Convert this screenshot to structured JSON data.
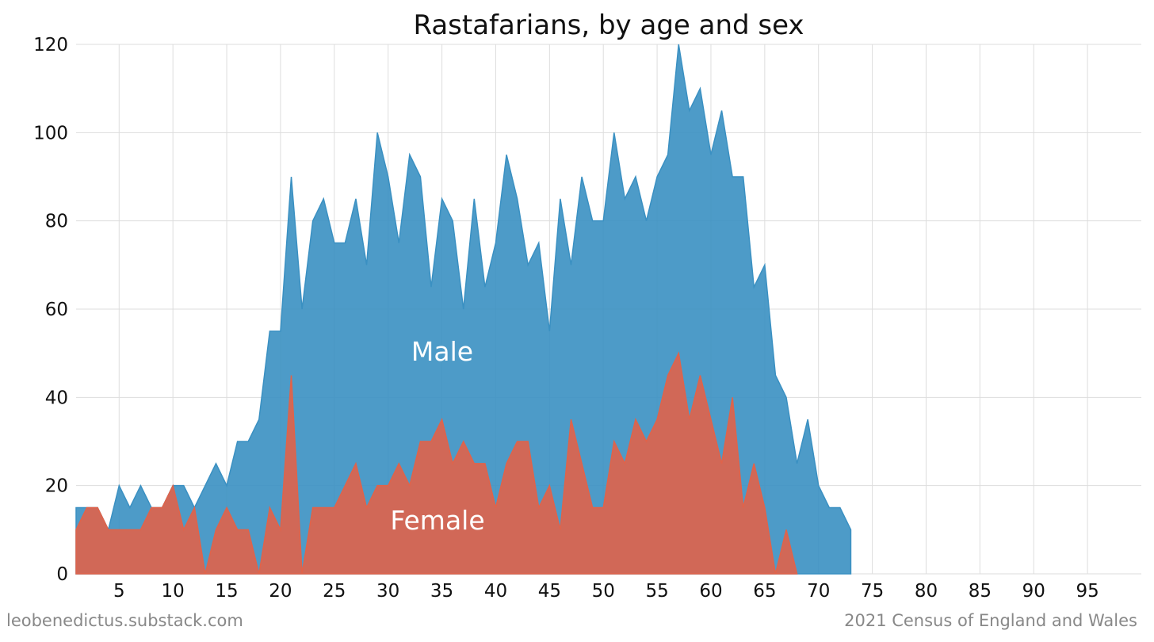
{
  "chart_data": {
    "type": "area",
    "title": "Rastafarians, by age and sex",
    "xlabel": "",
    "ylabel": "",
    "xlim": [
      1,
      100
    ],
    "ylim": [
      0,
      120
    ],
    "x_ticks": [
      5,
      10,
      15,
      20,
      25,
      30,
      35,
      40,
      45,
      50,
      55,
      60,
      65,
      70,
      75,
      80,
      85,
      90,
      95
    ],
    "y_ticks": [
      0,
      20,
      40,
      60,
      80,
      100,
      120
    ],
    "grid": true,
    "series": [
      {
        "name": "Male",
        "label": "Male",
        "color": "#3a90c2",
        "x": [
          1,
          2,
          3,
          4,
          5,
          6,
          7,
          8,
          9,
          10,
          11,
          12,
          13,
          14,
          15,
          16,
          17,
          18,
          19,
          20,
          21,
          22,
          23,
          24,
          25,
          26,
          27,
          28,
          29,
          30,
          31,
          32,
          33,
          34,
          35,
          36,
          37,
          38,
          39,
          40,
          41,
          42,
          43,
          44,
          45,
          46,
          47,
          48,
          49,
          50,
          51,
          52,
          53,
          54,
          55,
          56,
          57,
          58,
          59,
          60,
          61,
          62,
          63,
          64,
          65,
          66,
          67,
          68,
          69,
          70,
          71,
          72,
          73
        ],
        "values": [
          15,
          15,
          15,
          10,
          20,
          15,
          20,
          15,
          15,
          20,
          20,
          15,
          20,
          25,
          20,
          30,
          30,
          35,
          55,
          55,
          90,
          60,
          80,
          85,
          75,
          75,
          85,
          70,
          100,
          90,
          75,
          95,
          90,
          65,
          85,
          80,
          60,
          85,
          65,
          75,
          95,
          85,
          70,
          75,
          55,
          85,
          70,
          90,
          80,
          80,
          100,
          85,
          90,
          80,
          90,
          95,
          120,
          105,
          110,
          95,
          105,
          90,
          90,
          65,
          70,
          45,
          40,
          25,
          35,
          20,
          15,
          15,
          10
        ]
      },
      {
        "name": "Female",
        "label": "Female",
        "color": "#e0634a",
        "x": [
          1,
          2,
          3,
          4,
          5,
          6,
          7,
          8,
          9,
          10,
          11,
          12,
          13,
          14,
          15,
          16,
          17,
          18,
          19,
          20,
          21,
          22,
          23,
          24,
          25,
          26,
          27,
          28,
          29,
          30,
          31,
          32,
          33,
          34,
          35,
          36,
          37,
          38,
          39,
          40,
          41,
          42,
          43,
          44,
          45,
          46,
          47,
          48,
          49,
          50,
          51,
          52,
          53,
          54,
          55,
          56,
          57,
          58,
          59,
          60,
          61,
          62,
          63,
          64,
          65,
          66,
          67,
          68
        ],
        "values": [
          10,
          15,
          15,
          10,
          10,
          10,
          10,
          15,
          15,
          20,
          10,
          15,
          0,
          10,
          15,
          10,
          10,
          0,
          15,
          10,
          45,
          0,
          15,
          15,
          15,
          20,
          25,
          15,
          20,
          20,
          25,
          20,
          30,
          30,
          35,
          25,
          30,
          25,
          25,
          15,
          25,
          30,
          30,
          15,
          20,
          10,
          35,
          25,
          15,
          15,
          30,
          25,
          35,
          30,
          35,
          45,
          50,
          35,
          45,
          35,
          25,
          40,
          15,
          25,
          15,
          0,
          10,
          0
        ]
      }
    ],
    "footer_left": "leobenedictus.substack.com",
    "footer_right": "2021 Census of England and Wales"
  }
}
